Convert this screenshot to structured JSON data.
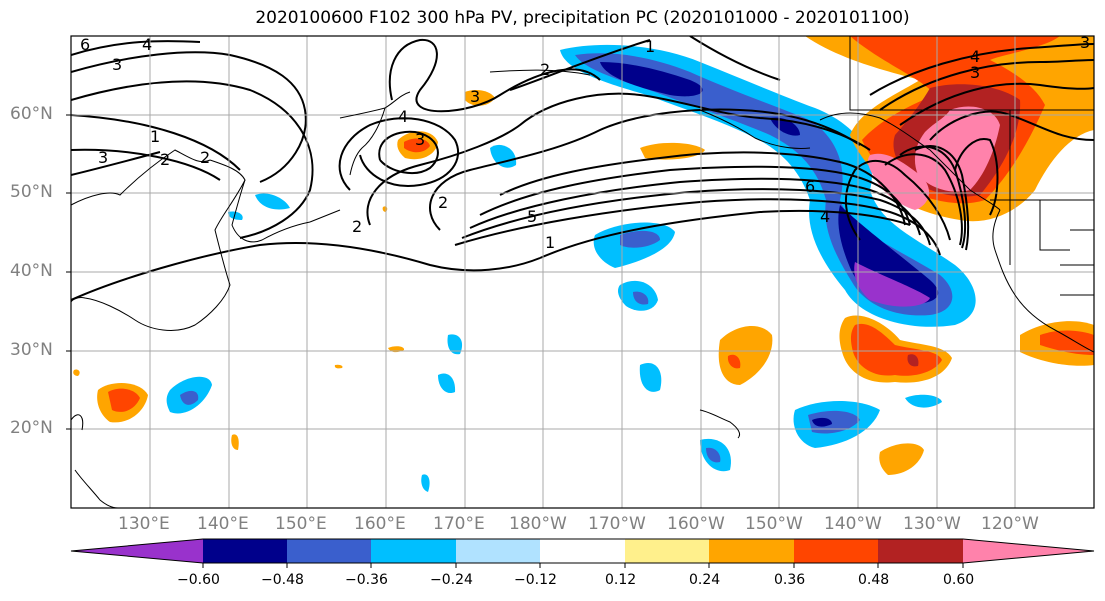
{
  "title": "2020100600 F102 300 hPa PV, precipitation PC (2020101000 - 2020101100)",
  "lat_labels": [
    "60°N",
    "50°N",
    "40°N",
    "30°N",
    "20°N"
  ],
  "lon_labels": [
    "130°E",
    "140°E",
    "150°E",
    "160°E",
    "170°E",
    "180°W",
    "170°W",
    "160°W",
    "150°W",
    "140°W",
    "130°W",
    "120°W"
  ],
  "colorbar": {
    "colors": [
      "#9932cc",
      "#00008b",
      "#3a5fcd",
      "#00bfff",
      "#b0e2ff",
      "#ffffff",
      "#fff08c",
      "#ffa500",
      "#ff4500",
      "#b22222",
      "#ff82ab"
    ],
    "tick_labels": [
      "−0.60",
      "−0.48",
      "−0.36",
      "−0.24",
      "−0.12",
      "0.12",
      "0.24",
      "0.36",
      "0.48",
      "0.60"
    ]
  },
  "contour_labels": [
    "6",
    "4",
    "3",
    "3",
    "2",
    "1",
    "2",
    "3",
    "4",
    "3",
    "2",
    "2",
    "1",
    "5",
    "1",
    "2",
    "4",
    "3",
    "4",
    "3",
    "6"
  ],
  "colors": {
    "contour": "#000000",
    "grid": "#a9a9a9",
    "coast": "#000000",
    "label": "#808080"
  }
}
